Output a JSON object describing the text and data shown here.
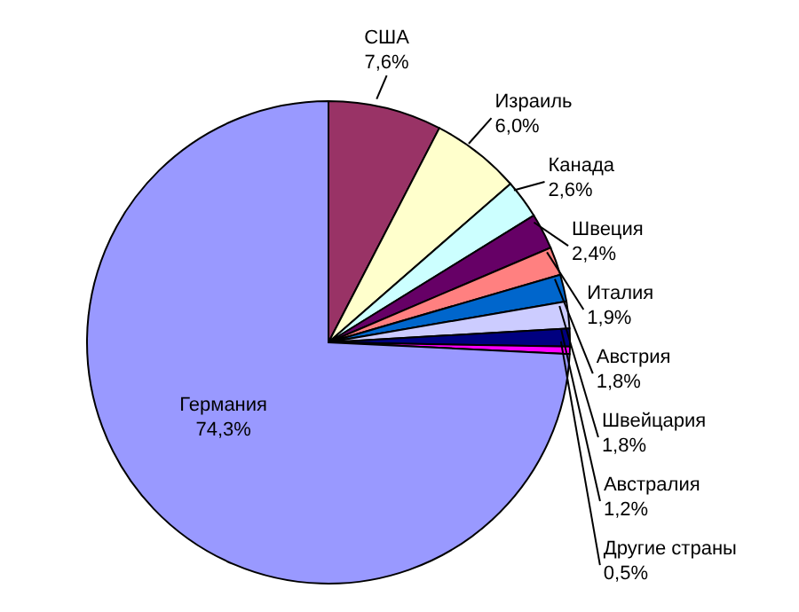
{
  "chart_data": {
    "type": "pie",
    "categories": [
      "США",
      "Израиль",
      "Канада",
      "Швеция",
      "Италия",
      "Австрия",
      "Швейцария",
      "Австралия",
      "Другие страны",
      "Германия"
    ],
    "values": [
      7.6,
      6.0,
      2.6,
      2.4,
      1.9,
      1.8,
      1.8,
      1.2,
      0.5,
      74.3
    ],
    "value_labels": [
      "7,6%",
      "6,0%",
      "2,6%",
      "2,4%",
      "1,9%",
      "1,8%",
      "1,8%",
      "1,2%",
      "0,5%",
      "74,3%"
    ],
    "colors": [
      "#993366",
      "#ffffcc",
      "#ccffff",
      "#660066",
      "#ff8080",
      "#0066cc",
      "#ccccff",
      "#000080",
      "#ff00ff",
      "#9999ff"
    ]
  }
}
